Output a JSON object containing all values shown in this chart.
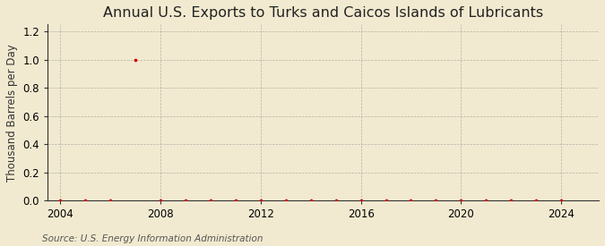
{
  "title": "Annual U.S. Exports to Turks and Caicos Islands of Lubricants",
  "ylabel": "Thousand Barrels per Day",
  "source": "Source: U.S. Energy Information Administration",
  "background_color": "#F2EAD0",
  "plot_bg_color": "#F2EAD0",
  "grid_color": "#999999",
  "dot_color": "#CC0000",
  "xlim": [
    2003.5,
    2025.5
  ],
  "ylim": [
    0.0,
    1.25
  ],
  "yticks": [
    0.0,
    0.2,
    0.4,
    0.6,
    0.8,
    1.0,
    1.2
  ],
  "xticks": [
    2004,
    2008,
    2012,
    2016,
    2020,
    2024
  ],
  "years": [
    2004,
    2005,
    2006,
    2007,
    2008,
    2009,
    2010,
    2011,
    2012,
    2013,
    2014,
    2015,
    2016,
    2017,
    2018,
    2019,
    2020,
    2021,
    2022,
    2023,
    2024
  ],
  "values": [
    0.0,
    0.0,
    0.0,
    1.0,
    0.0,
    0.0,
    0.0,
    0.0,
    0.0,
    0.0,
    0.0,
    0.0,
    0.0,
    0.0,
    0.0,
    0.0,
    0.0,
    0.0,
    0.0,
    0.0,
    0.0
  ],
  "title_fontsize": 11.5,
  "label_fontsize": 8.5,
  "tick_fontsize": 8.5,
  "source_fontsize": 7.5
}
